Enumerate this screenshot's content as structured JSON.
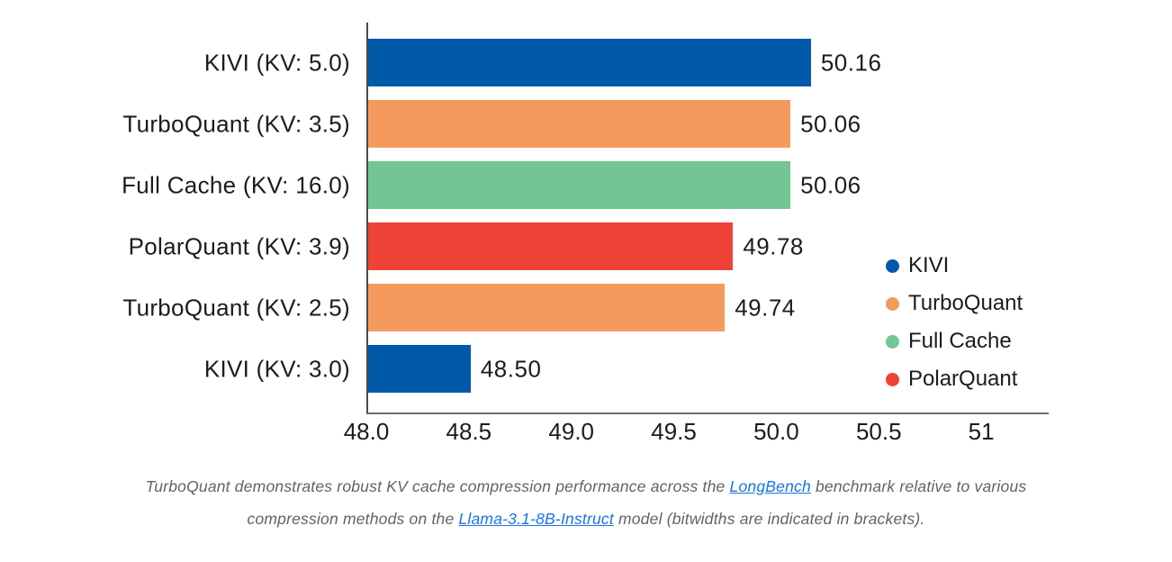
{
  "colors": {
    "kivi_blue": "#0159A9",
    "turboquant_orange": "#F49A5E",
    "full_cache_green": "#72C694",
    "polarquant_red": "#EE4236",
    "axis_line": "#4a4a4a",
    "text": "#1c1c1c",
    "caption_text": "#5f6368",
    "link": "#1a73e8"
  },
  "chart_data": {
    "type": "bar",
    "orientation": "horizontal",
    "title": "",
    "xlabel": "",
    "ylabel": "",
    "xlim": [
      48.0,
      51.32
    ],
    "grid": false,
    "categories": [
      "KIVI (KV: 5.0)",
      "TurboQuant (KV: 3.5)",
      "Full Cache (KV: 16.0)",
      "PolarQuant (KV: 3.9)",
      "TurboQuant (KV: 2.5)",
      "KIVI (KV: 3.0)"
    ],
    "values": [
      50.16,
      50.06,
      50.06,
      49.78,
      49.74,
      48.5
    ],
    "value_labels": [
      "50.16",
      "50.06",
      "50.06",
      "49.78",
      "49.74",
      "48.50"
    ],
    "bar_series": [
      "KIVI",
      "TurboQuant",
      "Full Cache",
      "PolarQuant",
      "TurboQuant",
      "KIVI"
    ],
    "series_colors": {
      "KIVI": "#0159A9",
      "TurboQuant": "#F49A5E",
      "Full Cache": "#72C694",
      "PolarQuant": "#EE4236"
    },
    "x_ticks": [
      "48.0",
      "48.5",
      "49.0",
      "49.5",
      "50.0",
      "50.5",
      "51"
    ],
    "x_tick_values": [
      48.0,
      48.5,
      49.0,
      49.5,
      50.0,
      50.5,
      51.0
    ],
    "legend": [
      {
        "label": "KIVI",
        "color": "#0159A9"
      },
      {
        "label": "TurboQuant",
        "color": "#F49A5E"
      },
      {
        "label": "Full Cache",
        "color": "#72C694"
      },
      {
        "label": "PolarQuant",
        "color": "#EE4236"
      }
    ],
    "legend_position": "right-middle"
  },
  "caption": {
    "segments": [
      {
        "type": "text",
        "text": "TurboQuant demonstrates robust KV cache compression performance across the "
      },
      {
        "type": "link",
        "text": "LongBench"
      },
      {
        "type": "text",
        "text": " benchmark relative to various compression methods on the "
      },
      {
        "type": "link",
        "text": "Llama-3.1-8B-Instruct"
      },
      {
        "type": "text",
        "text": " model (bitwidths are indicated in brackets)."
      }
    ]
  }
}
